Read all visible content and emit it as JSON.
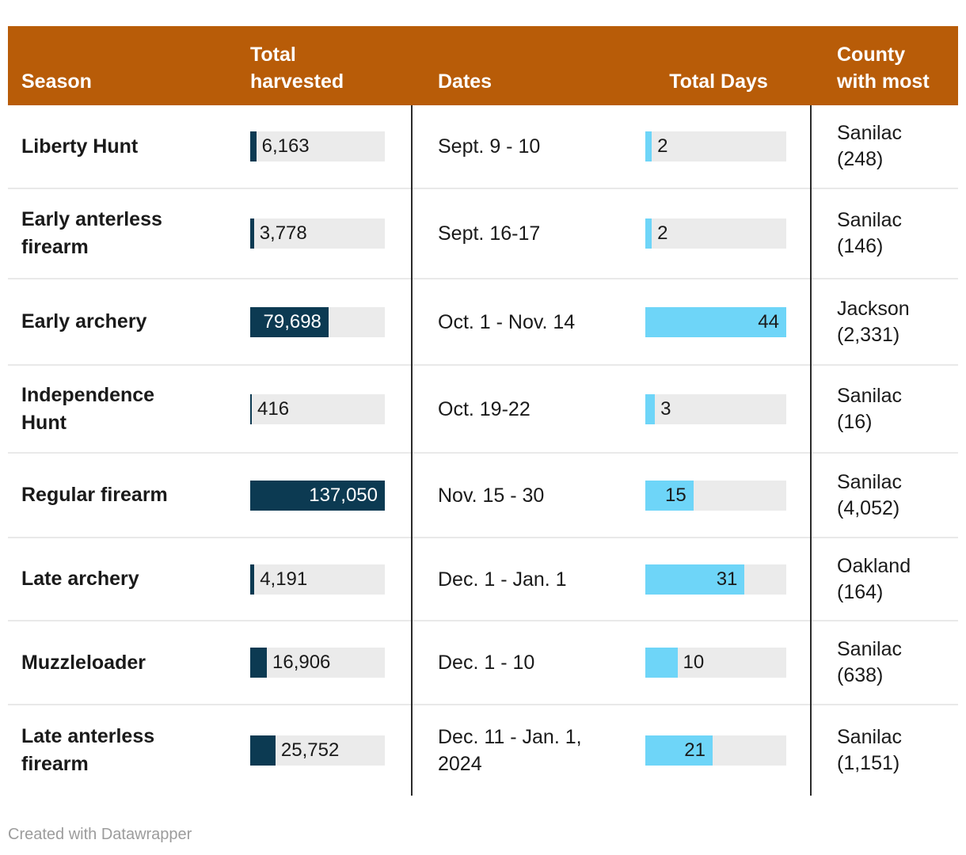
{
  "header": {
    "season": "Season",
    "harvested": "Total harvested",
    "dates": "Dates",
    "days": "Total Days",
    "county": "County with most"
  },
  "rows": [
    {
      "season": "Liberty Hunt",
      "harvested_value": 6163,
      "harvested_label": "6,163",
      "dates": "Sept. 9 - 10",
      "days_value": 2,
      "days_label": "2",
      "county_name": "Sanilac",
      "county_count": "(248)"
    },
    {
      "season": "Early anterless firearm",
      "harvested_value": 3778,
      "harvested_label": "3,778",
      "dates": "Sept. 16-17",
      "days_value": 2,
      "days_label": "2",
      "county_name": "Sanilac",
      "county_count": "(146)"
    },
    {
      "season": "Early archery",
      "harvested_value": 79698,
      "harvested_label": "79,698",
      "dates": "Oct. 1 - Nov. 14",
      "days_value": 44,
      "days_label": "44",
      "county_name": "Jackson",
      "county_count": "(2,331)"
    },
    {
      "season": "Independence Hunt",
      "harvested_value": 416,
      "harvested_label": "416",
      "dates": "Oct. 19-22",
      "days_value": 3,
      "days_label": "3",
      "county_name": "Sanilac",
      "county_count": "(16)"
    },
    {
      "season": "Regular firearm",
      "harvested_value": 137050,
      "harvested_label": "137,050",
      "dates": "Nov. 15 - 30",
      "days_value": 15,
      "days_label": "15",
      "county_name": "Sanilac",
      "county_count": "(4,052)"
    },
    {
      "season": "Late archery",
      "harvested_value": 4191,
      "harvested_label": "4,191",
      "dates": "Dec. 1 - Jan. 1",
      "days_value": 31,
      "days_label": "31",
      "county_name": "Oakland",
      "county_count": "(164)"
    },
    {
      "season": "Muzzleloader",
      "harvested_value": 16906,
      "harvested_label": "16,906",
      "dates": "Dec. 1 - 10",
      "days_value": 10,
      "days_label": "10",
      "county_name": "Sanilac",
      "county_count": "(638)"
    },
    {
      "season": "Late anterless firearm",
      "harvested_value": 25752,
      "harvested_label": "25,752",
      "dates": "Dec. 11 - Jan. 1, 2024",
      "days_value": 21,
      "days_label": "21",
      "county_name": "Sanilac",
      "county_count": "(1,151)"
    }
  ],
  "footer": {
    "credit": "Created with Datawrapper"
  },
  "colors": {
    "header_bg": "#b85c08",
    "header_text": "#ffffff",
    "bar_dark": "#0c3a52",
    "bar_light": "#6ed5f8",
    "track": "#ebebeb",
    "divider": "#2b2b2b",
    "row_separator": "#e9e9e9",
    "credit_text": "#9c9c9c"
  },
  "chart_data": {
    "type": "table",
    "title": "",
    "columns": [
      "Season",
      "Total harvested",
      "Dates",
      "Total Days",
      "County with most"
    ],
    "rows": [
      [
        "Liberty Hunt",
        6163,
        "Sept. 9 - 10",
        2,
        "Sanilac (248)"
      ],
      [
        "Early anterless firearm",
        3778,
        "Sept. 16-17",
        2,
        "Sanilac (146)"
      ],
      [
        "Early archery",
        79698,
        "Oct. 1 - Nov. 14",
        44,
        "Jackson (2,331)"
      ],
      [
        "Independence Hunt",
        416,
        "Oct. 19-22",
        3,
        "Sanilac (16)"
      ],
      [
        "Regular firearm",
        137050,
        "Nov. 15 - 30",
        15,
        "Sanilac (4,052)"
      ],
      [
        "Late archery",
        4191,
        "Dec. 1 - Jan. 1",
        31,
        "Oakland (164)"
      ],
      [
        "Muzzleloader",
        16906,
        "Dec. 1 - 10",
        10,
        "Sanilac (638)"
      ],
      [
        "Late anterless firearm",
        25752,
        "Dec. 11 - Jan. 1, 2024",
        21,
        "Sanilac (1,151)"
      ]
    ],
    "bar_columns": [
      {
        "column": "Total harvested",
        "type": "bar",
        "max": 137050,
        "color": "#0c3a52",
        "label_inside_color": "#ffffff"
      },
      {
        "column": "Total Days",
        "type": "bar",
        "max": 44,
        "color": "#6ed5f8",
        "label_inside_color": "#1a1a1a"
      }
    ],
    "legend_position": "none",
    "grid": false
  }
}
